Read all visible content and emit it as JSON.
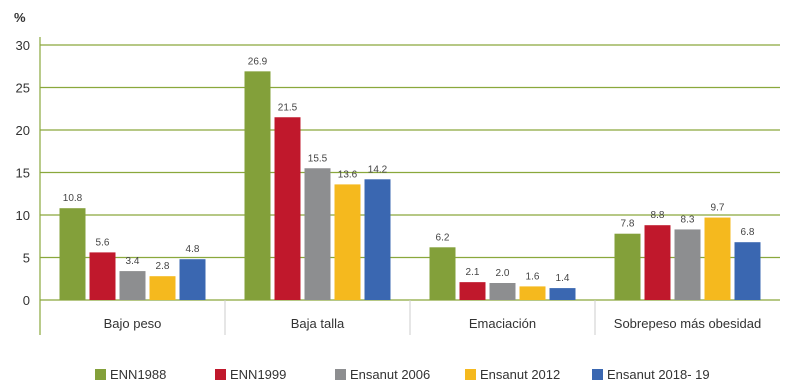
{
  "chart_data": {
    "type": "bar",
    "ylabel": "%",
    "ylim": [
      0,
      30
    ],
    "yticks": [
      "0",
      "5",
      "10",
      "15",
      "20",
      "25",
      "30"
    ],
    "grid": true,
    "legend_position": "bottom",
    "categories": [
      "Bajo peso",
      "Baja talla",
      "Emaciación",
      "Sobrepeso más obesidad"
    ],
    "series": [
      {
        "name": "ENN1988",
        "color": "#83a03a",
        "values": [
          10.8,
          26.9,
          6.2,
          7.8
        ],
        "labels": [
          "10.8",
          "26.9",
          "6.2",
          "7.8"
        ]
      },
      {
        "name": "ENN1999",
        "color": "#c0182c",
        "values": [
          5.6,
          21.5,
          2.1,
          8.8
        ],
        "labels": [
          "5.6",
          "21.5",
          "2.1",
          "8.8"
        ]
      },
      {
        "name": "Ensanut 2006",
        "color": "#8d8e90",
        "values": [
          3.4,
          15.5,
          2.0,
          8.3
        ],
        "labels": [
          "3.4",
          "15.5",
          "2.0",
          "8.3"
        ]
      },
      {
        "name": "Ensanut 2012",
        "color": "#f5b91e",
        "values": [
          2.8,
          13.6,
          1.6,
          9.7
        ],
        "labels": [
          "2.8",
          "13.6",
          "1.6",
          "9.7"
        ]
      },
      {
        "name": "Ensanut 2018- 19",
        "color": "#3a67b1",
        "values": [
          4.8,
          14.2,
          1.4,
          6.8
        ],
        "labels": [
          "4.8",
          "14.2",
          "1.4",
          "6.8"
        ]
      }
    ],
    "axis_color": "#8aa83c"
  }
}
